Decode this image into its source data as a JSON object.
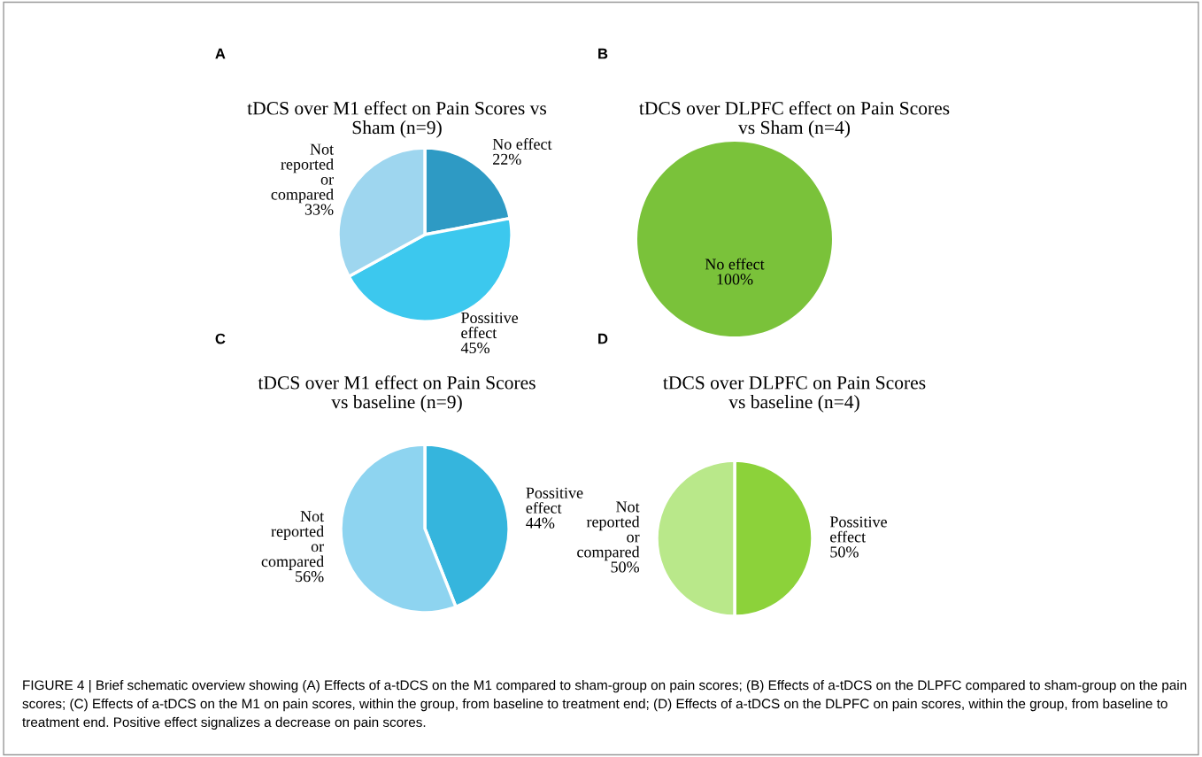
{
  "chart_data": [
    {
      "type": "pie",
      "title": "tDCS over M1 effect on Pain Scores vs\nSham (n=9)",
      "categories": [
        "No effect",
        "Possitive\neffect",
        "Not\nreported\nor\ncompared"
      ],
      "values": [
        22,
        45,
        33
      ],
      "value_labels": [
        "22%",
        "45%",
        "33%"
      ],
      "colors": [
        "#2e9ac4",
        "#3cc8ee",
        "#9ed6ef"
      ],
      "annotations": [
        "A"
      ]
    },
    {
      "type": "pie",
      "title": "tDCS over DLPFC effect on Pain Scores\nvs Sham (n=4)",
      "categories": [
        "No effect"
      ],
      "values": [
        100
      ],
      "value_labels": [
        "100%"
      ],
      "colors": [
        "#7ac23a"
      ],
      "annotations": [
        "B"
      ]
    },
    {
      "type": "pie",
      "title": "tDCS over M1 effect on Pain Scores\nvs baseline (n=9)",
      "categories": [
        "Possitive\neffect",
        "Not\nreported\nor\ncompared"
      ],
      "values": [
        44,
        56
      ],
      "value_labels": [
        "44%",
        "56%"
      ],
      "colors": [
        "#35b5dd",
        "#8ed4f0"
      ],
      "annotations": [
        "C"
      ]
    },
    {
      "type": "pie",
      "title": "tDCS over DLPFC on Pain Scores\nvs baseline (n=4)",
      "categories": [
        "Possitive\neffect",
        "Not\nreported\nor\ncompared"
      ],
      "values": [
        50,
        50
      ],
      "value_labels": [
        "50%",
        "50%"
      ],
      "colors": [
        "#8cd23a",
        "#b9e88a"
      ],
      "annotations": [
        "D",
        "FIGURE 4 | Brief schematic overview showing (A) Effects of a-tDCS on the M1 compared to sham-group on pain scores; (B) Effects of a-tDCS on the DLPFC compared to sham-group on the pain scores; (C) Effects of a-tDCS on the M1 on pain scores, within the group, from baseline to treatment end; (D) Effects of a-tDCS on the DLPFC on pain scores, within the group, from baseline to treatment end. Positive effect signalizes a decrease on pain scores."
      ]
    }
  ]
}
